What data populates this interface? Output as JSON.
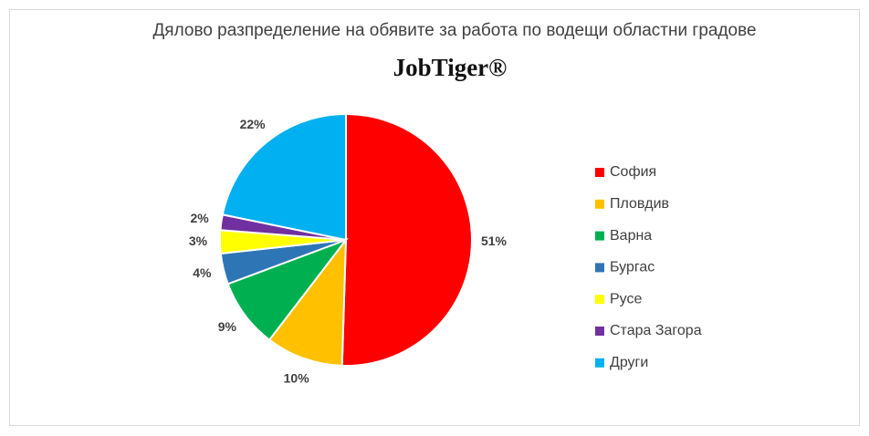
{
  "chart_data": {
    "type": "pie",
    "title": "Дялово разпределение на обявите за работа по водещи областни градове",
    "subtitle": "JobTiger®",
    "categories": [
      "София",
      "Пловдив",
      "Варна",
      "Бургас",
      "Русе",
      "Стара Загора",
      "Други"
    ],
    "values": [
      51,
      10,
      9,
      4,
      3,
      2,
      22
    ],
    "value_labels": [
      "51%",
      "10%",
      "9%",
      "4%",
      "3%",
      "2%",
      "22%"
    ],
    "colors": [
      "#ff0000",
      "#ffc000",
      "#00b050",
      "#2e75b6",
      "#ffff00",
      "#7030a0",
      "#00b0f0"
    ],
    "legend": "right"
  }
}
